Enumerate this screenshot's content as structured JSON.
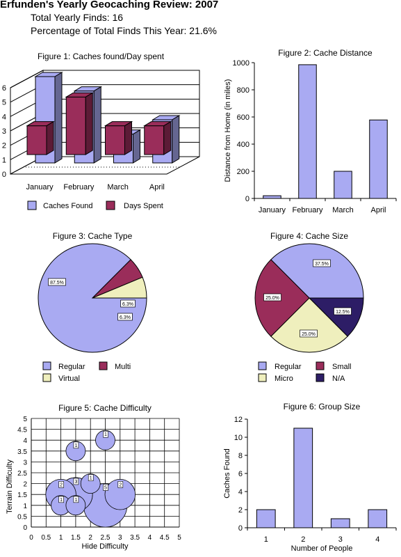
{
  "header": {
    "title": "Erfunden's Yearly Geocaching Review: 2007",
    "total_line": "Total Yearly Finds: 16",
    "pct_line": "Percentage of Total Finds This Year: 21.6%"
  },
  "colors": {
    "periwinkle": "#a9aaf2",
    "maroon": "#9a2d5a",
    "cream": "#efefbd",
    "navy": "#2d1d66"
  },
  "chart_data": [
    {
      "type": "bar",
      "title": "Figure 1: Caches found/Day spent",
      "categories": [
        "January",
        "February",
        "March",
        "April"
      ],
      "series": [
        {
          "name": "Caches Found",
          "values": [
            6,
            5,
            2,
            3
          ]
        },
        {
          "name": "Days Spent",
          "values": [
            2,
            4,
            2,
            2
          ]
        }
      ],
      "yticks": [
        "0",
        "1",
        "2",
        "3",
        "4",
        "5",
        "6"
      ],
      "ylim": [
        0,
        6
      ],
      "legend": "bottom"
    },
    {
      "type": "bar",
      "title": "Figure 2: Cache Distance",
      "categories": [
        "January",
        "February",
        "March",
        "April"
      ],
      "values": [
        20,
        985,
        200,
        578
      ],
      "ylabel": "Distance from Home (in miles)",
      "yticks": [
        "0",
        "200",
        "400",
        "600",
        "800",
        "1000"
      ],
      "ylim": [
        0,
        1000
      ]
    },
    {
      "type": "pie",
      "title": "Figure 3: Cache Type",
      "slices": [
        {
          "name": "Regular",
          "value": 87.5,
          "label": "87.5%"
        },
        {
          "name": "Multi",
          "value": 6.25,
          "label": "6.3%"
        },
        {
          "name": "Virtual",
          "value": 6.25,
          "label": "6.3%"
        }
      ],
      "legend": "bottom"
    },
    {
      "type": "pie",
      "title": "Figure 4: Cache Size",
      "slices": [
        {
          "name": "Regular",
          "value": 37.5,
          "label": "37.5%"
        },
        {
          "name": "N/A",
          "value": 12.5,
          "label": "12.5%"
        },
        {
          "name": "Micro",
          "value": 25,
          "label": "25.0%"
        },
        {
          "name": "Small",
          "value": 25,
          "label": "25.0%"
        }
      ],
      "legend": "bottom"
    },
    {
      "type": "scatter",
      "title": "Figure 5: Cache Difficulty",
      "xlabel": "Hide Difficulty",
      "ylabel": "Terrain Difficulty",
      "xticks": [
        "0",
        "0.5",
        "1",
        "1.5",
        "2",
        "2.5",
        "3",
        "3.5",
        "4",
        "4.5",
        "5"
      ],
      "yticks": [
        "0",
        "0.5",
        "1",
        "1.5",
        "2",
        "2.5",
        "3",
        "3.5",
        "4",
        "4.5",
        "5"
      ],
      "xlim": [
        0,
        5
      ],
      "ylim": [
        0,
        5
      ],
      "grid": true,
      "points": [
        {
          "x": 1.5,
          "y": 3.5,
          "size": 1,
          "label": "1"
        },
        {
          "x": 2.5,
          "y": 4,
          "size": 1,
          "label": "1"
        },
        {
          "x": 2,
          "y": 2,
          "size": 1,
          "label": "1"
        },
        {
          "x": 1,
          "y": 1.5,
          "size": 2,
          "label": "2"
        },
        {
          "x": 1.5,
          "y": 1.5,
          "size": 3,
          "label": "3"
        },
        {
          "x": 3,
          "y": 1.5,
          "size": 2,
          "label": "2"
        },
        {
          "x": 1,
          "y": 1,
          "size": 1,
          "label": "1"
        },
        {
          "x": 1.5,
          "y": 1,
          "size": 1,
          "label": "1"
        },
        {
          "x": 2.5,
          "y": 1,
          "size": 5,
          "label": "5"
        }
      ]
    },
    {
      "type": "bar",
      "title": "Figure 6: Group Size",
      "categories": [
        "1",
        "2",
        "3",
        "4"
      ],
      "values": [
        2,
        11,
        1,
        2
      ],
      "xlabel": "Number of People",
      "ylabel": "Caches Found",
      "yticks": [
        "0",
        "2",
        "4",
        "6",
        "8",
        "10",
        "12"
      ],
      "ylim": [
        0,
        12
      ]
    }
  ]
}
